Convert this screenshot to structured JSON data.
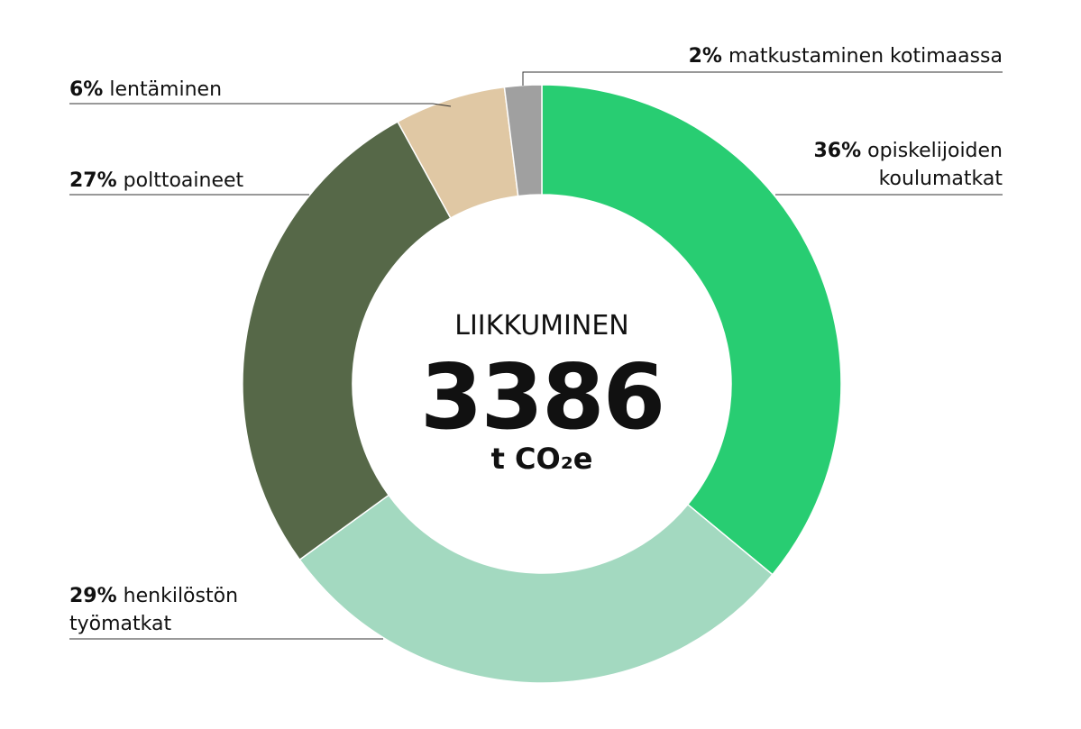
{
  "chart_data": {
    "type": "donut",
    "title": "LIIKKUMINEN",
    "total": 3386,
    "unit": "t CO₂e",
    "categories": [
      "opiskelijoiden koulumatkat",
      "henkilöstön työmatkat",
      "polttoaineet",
      "lentäminen",
      "matkustaminen kotimaassa"
    ],
    "values": [
      36,
      29,
      27,
      6,
      2
    ],
    "value_labels": [
      "36%",
      "29%",
      "27%",
      "6%",
      "2%"
    ],
    "colors": [
      "#28cd72",
      "#a3d9c0",
      "#566848",
      "#e0c8a4",
      "#a0a0a0"
    ]
  }
}
